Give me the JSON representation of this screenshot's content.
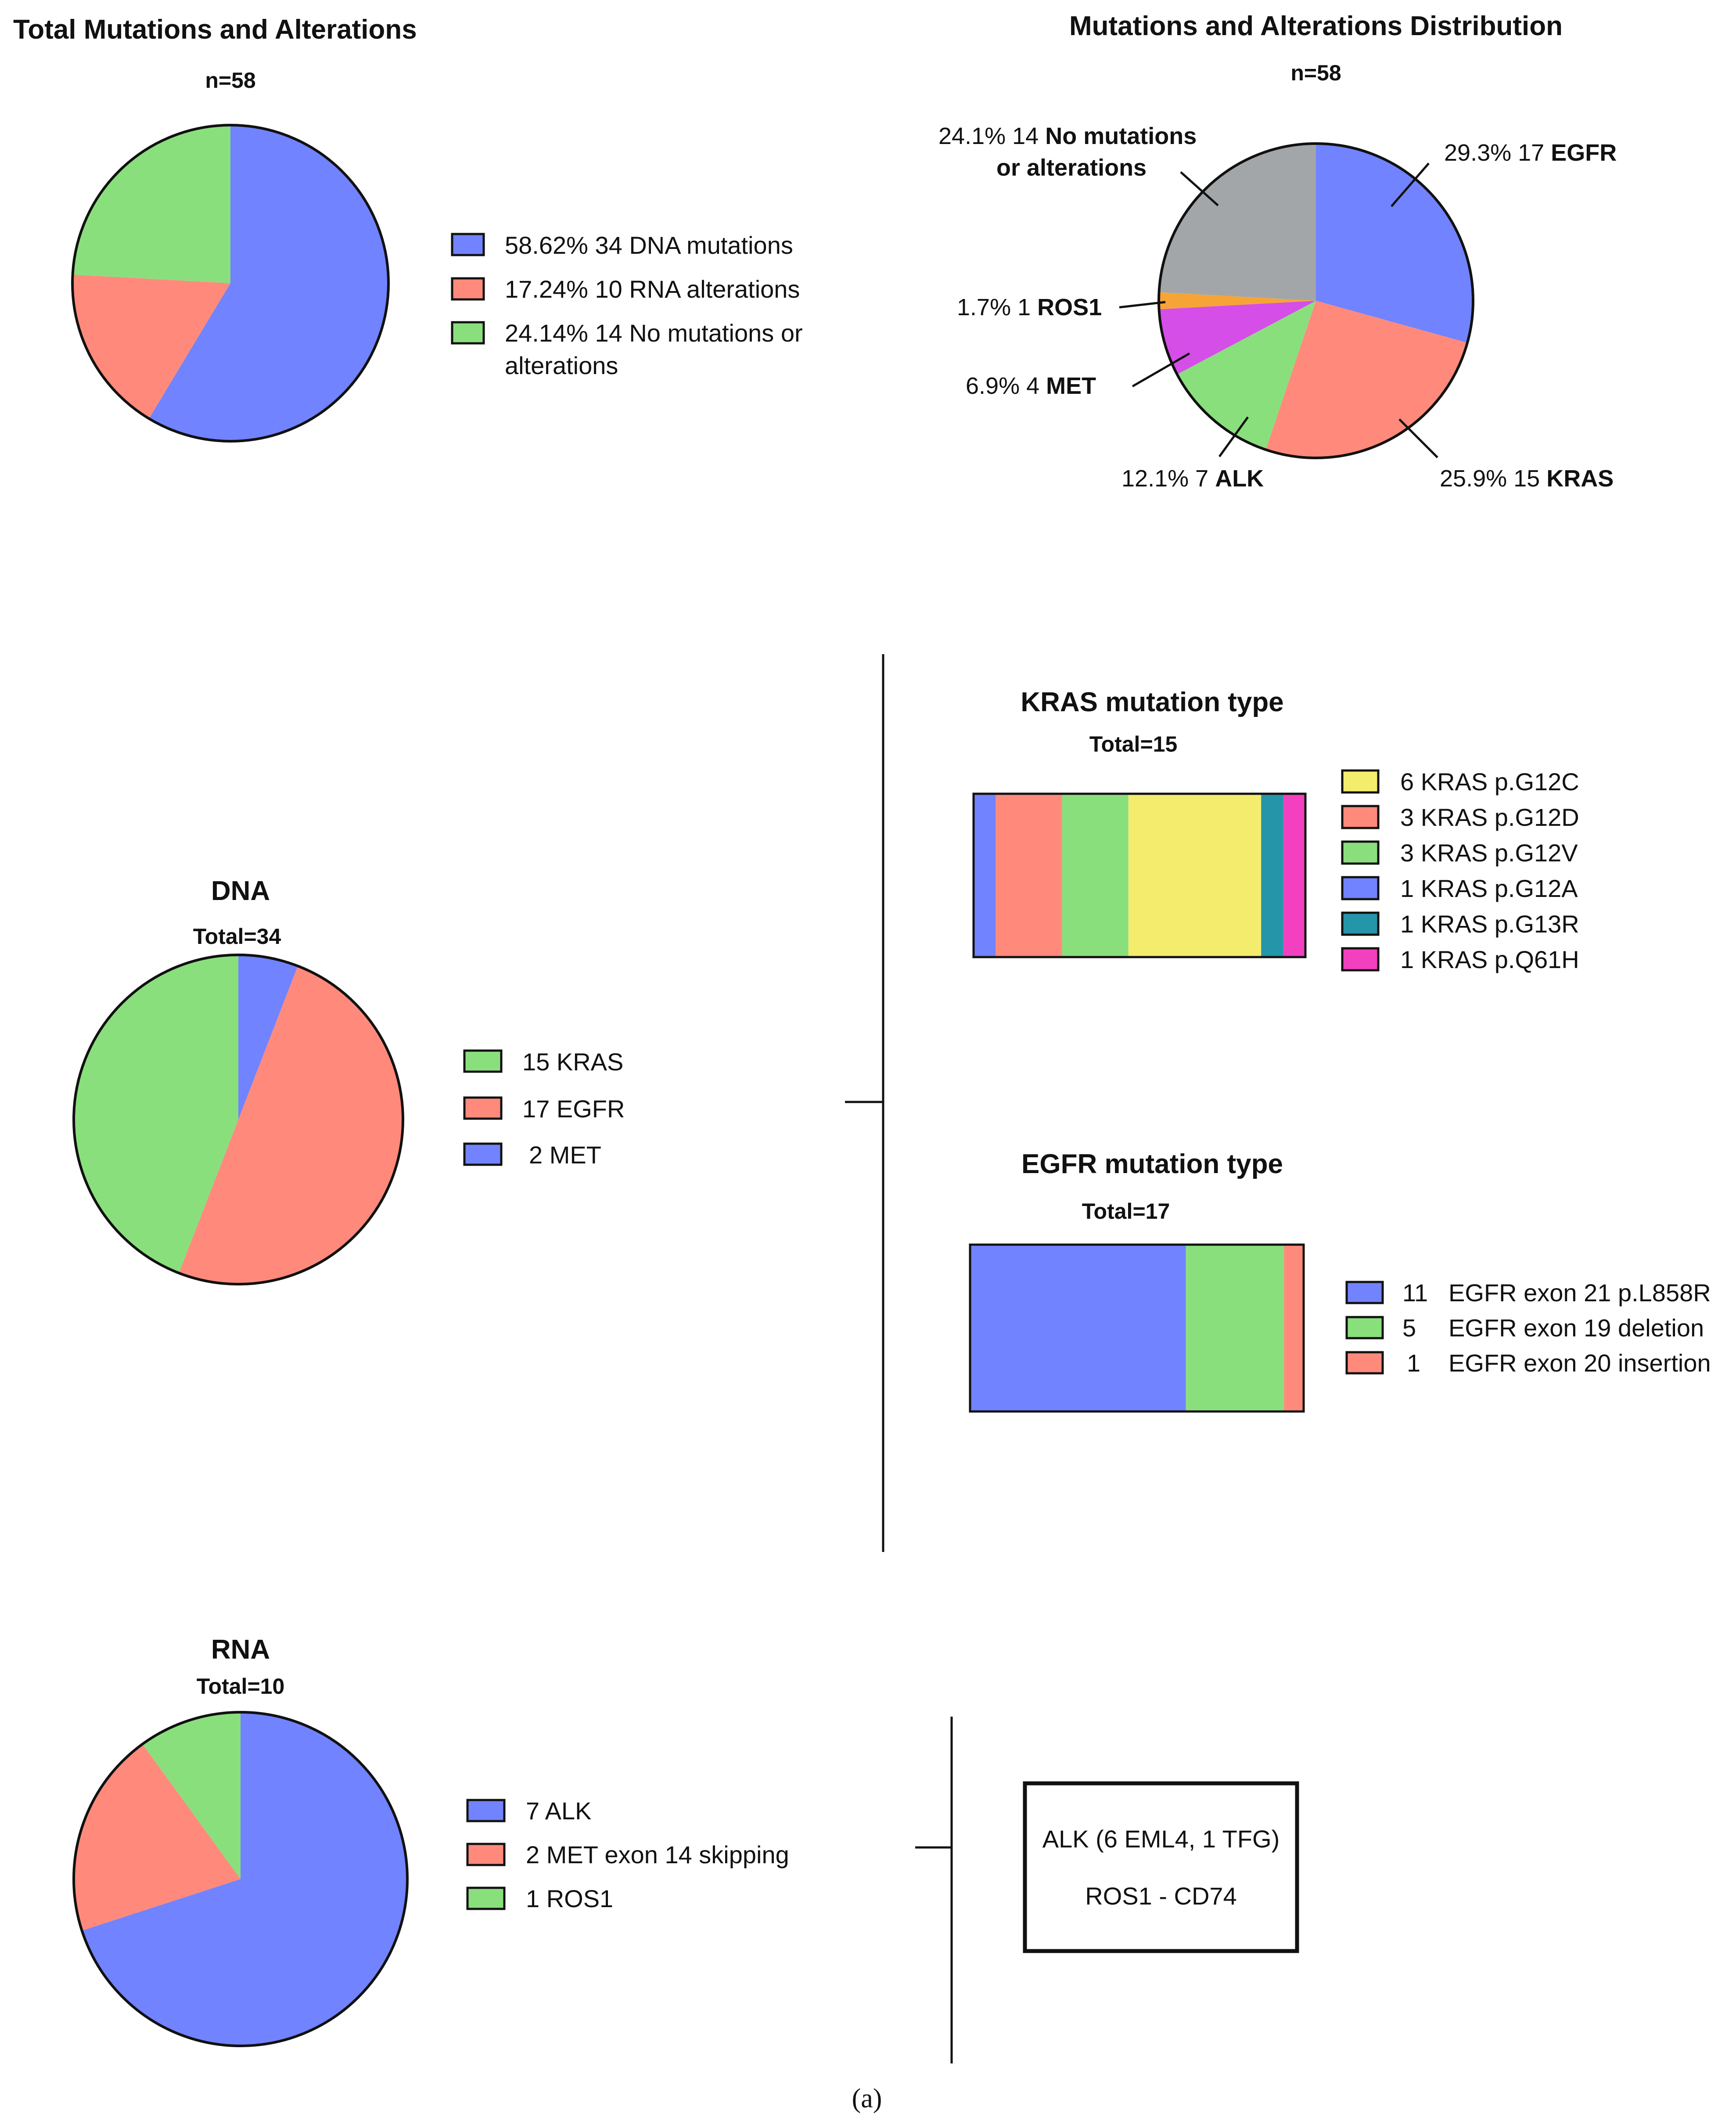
{
  "chart_data": [
    {
      "id": "total",
      "type": "pie",
      "title": "Total Mutations and Alterations",
      "subtitle": "n=58",
      "slices": [
        {
          "key": "dna",
          "value": 34,
          "percent": "58.62%",
          "label": "34 DNA mutations",
          "color": "#7183FF"
        },
        {
          "key": "rna",
          "value": 10,
          "percent": "17.24%",
          "label": "10 RNA alterations",
          "color": "#FF8A7B"
        },
        {
          "key": "none",
          "value": 14,
          "percent": "24.14%",
          "label": "14 No mutations or alterations",
          "label_lines": [
            "14 No mutations or",
            "alterations"
          ],
          "color": "#8ADF7D"
        }
      ]
    },
    {
      "id": "distribution",
      "type": "pie",
      "title": "Mutations and Alterations Distribution",
      "subtitle": "n=58",
      "slices": [
        {
          "key": "egfr",
          "value": 17,
          "pct": "29.3%",
          "count": "17",
          "name": "EGFR",
          "color": "#7183FF"
        },
        {
          "key": "kras",
          "value": 15,
          "pct": "25.9%",
          "count": "15",
          "name": "KRAS",
          "color": "#FF8A7B"
        },
        {
          "key": "alk",
          "value": 7,
          "pct": "12.1%",
          "count": "7",
          "name": "ALK",
          "color": "#8ADF7D"
        },
        {
          "key": "met",
          "value": 4,
          "pct": "6.9%",
          "count": "4",
          "name": "MET",
          "color": "#D54EE8"
        },
        {
          "key": "ros1",
          "value": 1,
          "pct": "1.7%",
          "count": "1",
          "name": "ROS1",
          "color": "#F7A436"
        },
        {
          "key": "none",
          "value": 14,
          "pct": "24.1%",
          "count": "14",
          "name": "No mutations or alterations",
          "name_lines": [
            "No mutations",
            "or alterations"
          ],
          "color": "#A2A6A8"
        }
      ]
    },
    {
      "id": "dna",
      "type": "pie",
      "title": "DNA",
      "subtitle": "Total=34",
      "slices": [
        {
          "key": "met",
          "value": 2,
          "label": "2 MET",
          "color": "#7183FF"
        },
        {
          "key": "egfr",
          "value": 17,
          "label": "17 EGFR",
          "color": "#FF8A7B"
        },
        {
          "key": "kras",
          "value": 15,
          "label": "15 KRAS",
          "color": "#8ADF7D"
        }
      ],
      "legend_order": [
        "kras",
        "egfr",
        "met"
      ]
    },
    {
      "id": "kras",
      "type": "bar",
      "stacked": true,
      "title": "KRAS mutation type",
      "subtitle": "Total=15",
      "segments": [
        {
          "key": "g12a",
          "value": 1,
          "label": "1 KRAS p.G12A",
          "color": "#7183FF"
        },
        {
          "key": "g12d",
          "value": 3,
          "label": "3 KRAS p.G12D",
          "color": "#FF8A7B"
        },
        {
          "key": "g12v",
          "value": 3,
          "label": "3 KRAS p.G12V",
          "color": "#8ADF7D"
        },
        {
          "key": "g12c",
          "value": 6,
          "label": "6 KRAS p.G12C",
          "color": "#F4EC6C"
        },
        {
          "key": "g13r",
          "value": 1,
          "label": "1 KRAS p.G13R",
          "color": "#2595AA"
        },
        {
          "key": "q61h",
          "value": 1,
          "label": "1 KRAS p.Q61H",
          "color": "#F240C0"
        }
      ],
      "legend_order": [
        "g12c",
        "g12d",
        "g12v",
        "g12a",
        "g13r",
        "q61h"
      ]
    },
    {
      "id": "egfr",
      "type": "bar",
      "stacked": true,
      "title": "EGFR mutation type",
      "subtitle": "Total=17",
      "segments": [
        {
          "key": "l858r",
          "value": 11,
          "count": "11",
          "label": "EGFR exon 21 p.L858R",
          "color": "#7183FF"
        },
        {
          "key": "del19",
          "value": 5,
          "count": "5",
          "label": "EGFR exon 19 deletion",
          "color": "#8ADF7D"
        },
        {
          "key": "ins20",
          "value": 1,
          "count": "1",
          "label": "EGFR exon 20 insertion",
          "color": "#FF8A7B"
        }
      ]
    },
    {
      "id": "rna",
      "type": "pie",
      "title": "RNA",
      "subtitle": "Total=10",
      "slices": [
        {
          "key": "alk",
          "value": 7,
          "label": "7 ALK",
          "color": "#7183FF"
        },
        {
          "key": "met",
          "value": 2,
          "label": "2 MET exon 14 skipping",
          "color": "#FF8A7B"
        },
        {
          "key": "ros1",
          "value": 1,
          "label": "1 ROS1",
          "color": "#8ADF7D"
        }
      ]
    }
  ],
  "fusion_box": {
    "lines": [
      "ALK (6 EML4, 1 TFG)",
      "ROS1 - CD74"
    ]
  },
  "caption": "(a)"
}
